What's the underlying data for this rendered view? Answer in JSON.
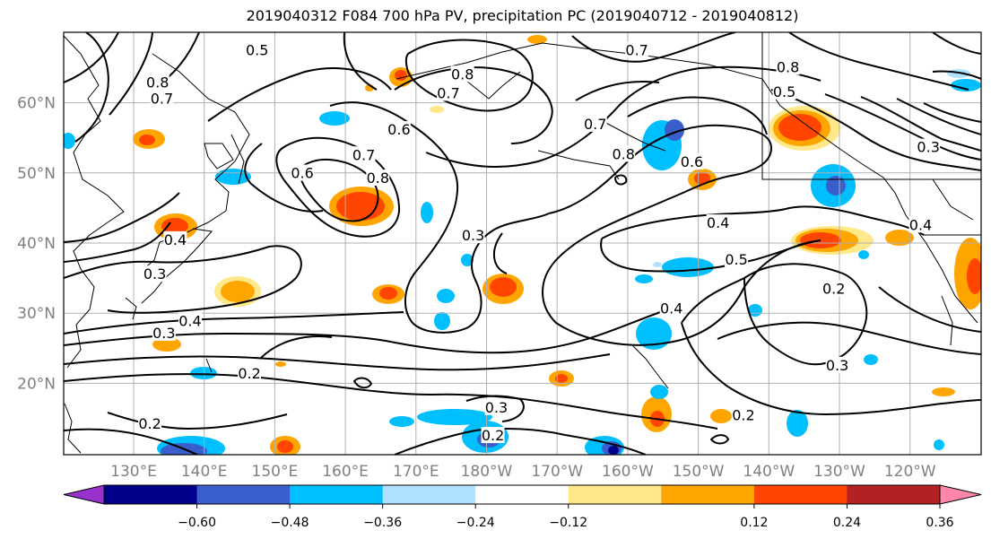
{
  "title": "2019040312 F084 700 hPa PV, precipitation PC (2019040712 - 2019040812)",
  "chart_data": {
    "type": "heatmap",
    "title": "2019040312 F084 700 hPa PV, precipitation PC (2019040712 - 2019040812)",
    "projection": "cylindrical",
    "grid": true,
    "xlim_lon": [
      120,
      185
    ],
    "ylim_lat": [
      10,
      70
    ],
    "x_ticks": [
      {
        "lon": 130,
        "label": "130°E"
      },
      {
        "lon": 140,
        "label": "140°E"
      },
      {
        "lon": 150,
        "label": "150°E"
      },
      {
        "lon": 160,
        "label": "160°E"
      },
      {
        "lon": 170,
        "label": "170°E"
      },
      {
        "lon": 180,
        "label": "180°W"
      },
      {
        "lon": 190,
        "label": "170°W"
      },
      {
        "lon": 200,
        "label": "160°W"
      },
      {
        "lon": 210,
        "label": "150°W"
      },
      {
        "lon": 220,
        "label": "140°W"
      },
      {
        "lon": 230,
        "label": "130°W"
      },
      {
        "lon": 240,
        "label": "120°W"
      }
    ],
    "y_ticks": [
      {
        "lat": 20,
        "label": "20°N"
      },
      {
        "lat": 30,
        "label": "30°N"
      },
      {
        "lat": 40,
        "label": "40°N"
      },
      {
        "lat": 50,
        "label": "50°N"
      },
      {
        "lat": 60,
        "label": "60°N"
      }
    ],
    "colorbar": {
      "levels": [
        -0.72,
        -0.6,
        -0.48,
        -0.36,
        -0.24,
        -0.12,
        0.12,
        0.24,
        0.36,
        0.48,
        0.6,
        0.72
      ],
      "tick_labels": [
        "−0.60",
        "−0.48",
        "−0.36",
        "−0.24",
        "−0.12",
        "0.12",
        "0.24",
        "0.36",
        "0.48",
        "0.60"
      ],
      "colors": [
        "#9932cc",
        "#00008b",
        "#3a5fcd",
        "#00bfff",
        "#b0e2ff",
        "#ffffff",
        "#ffe88a",
        "#ffa500",
        "#ff4500",
        "#b22222",
        "#ff88aa"
      ],
      "extend": "both"
    },
    "contour_series_name": "700 hPa PV",
    "contour_labels": [
      {
        "text": "0.8",
        "lon": 133.4,
        "lat": 62.8
      },
      {
        "text": "0.7",
        "lon": 134.0,
        "lat": 60.5
      },
      {
        "text": "0.5",
        "lon": 147.5,
        "lat": 67.4
      },
      {
        "text": "0.8",
        "lon": 176.6,
        "lat": 64.0
      },
      {
        "text": "0.7",
        "lon": 174.6,
        "lat": 61.3
      },
      {
        "text": "0.6",
        "lon": 167.6,
        "lat": 56.1
      },
      {
        "text": "0.7",
        "lon": 162.6,
        "lat": 52.5
      },
      {
        "text": "0.8",
        "lon": 164.6,
        "lat": 49.2
      },
      {
        "text": "0.6",
        "lon": 153.9,
        "lat": 49.9
      },
      {
        "text": "0.7",
        "lon": 201.3,
        "lat": 67.4
      },
      {
        "text": "0.7",
        "lon": 195.4,
        "lat": 56.9
      },
      {
        "text": "0.8",
        "lon": 199.4,
        "lat": 52.6
      },
      {
        "text": "0.8",
        "lon": 222.7,
        "lat": 65.0
      },
      {
        "text": "0.5",
        "lon": 222.2,
        "lat": 61.5
      },
      {
        "text": "0.6",
        "lon": 209.1,
        "lat": 51.5
      },
      {
        "text": "0.3",
        "lon": 242.6,
        "lat": 53.6
      },
      {
        "text": "0.4",
        "lon": 241.5,
        "lat": 42.5
      },
      {
        "text": "0.4",
        "lon": 135.9,
        "lat": 40.4
      },
      {
        "text": "0.3",
        "lon": 133.0,
        "lat": 35.5
      },
      {
        "text": "0.3",
        "lon": 178.1,
        "lat": 41.0
      },
      {
        "text": "0.4",
        "lon": 212.8,
        "lat": 42.8
      },
      {
        "text": "0.5",
        "lon": 215.4,
        "lat": 37.6
      },
      {
        "text": "0.4",
        "lon": 206.2,
        "lat": 30.6
      },
      {
        "text": "0.2",
        "lon": 229.2,
        "lat": 33.4
      },
      {
        "text": "0.4",
        "lon": 138.0,
        "lat": 28.8
      },
      {
        "text": "0.3",
        "lon": 134.3,
        "lat": 27.1
      },
      {
        "text": "0.2",
        "lon": 146.4,
        "lat": 21.3
      },
      {
        "text": "0.3",
        "lon": 229.7,
        "lat": 22.5
      },
      {
        "text": "0.3",
        "lon": 181.4,
        "lat": 16.5
      },
      {
        "text": "0.2",
        "lon": 180.9,
        "lat": 12.5
      },
      {
        "text": "0.2",
        "lon": 132.3,
        "lat": 14.2
      },
      {
        "text": "0.2",
        "lon": 216.4,
        "lat": 15.4
      }
    ]
  }
}
